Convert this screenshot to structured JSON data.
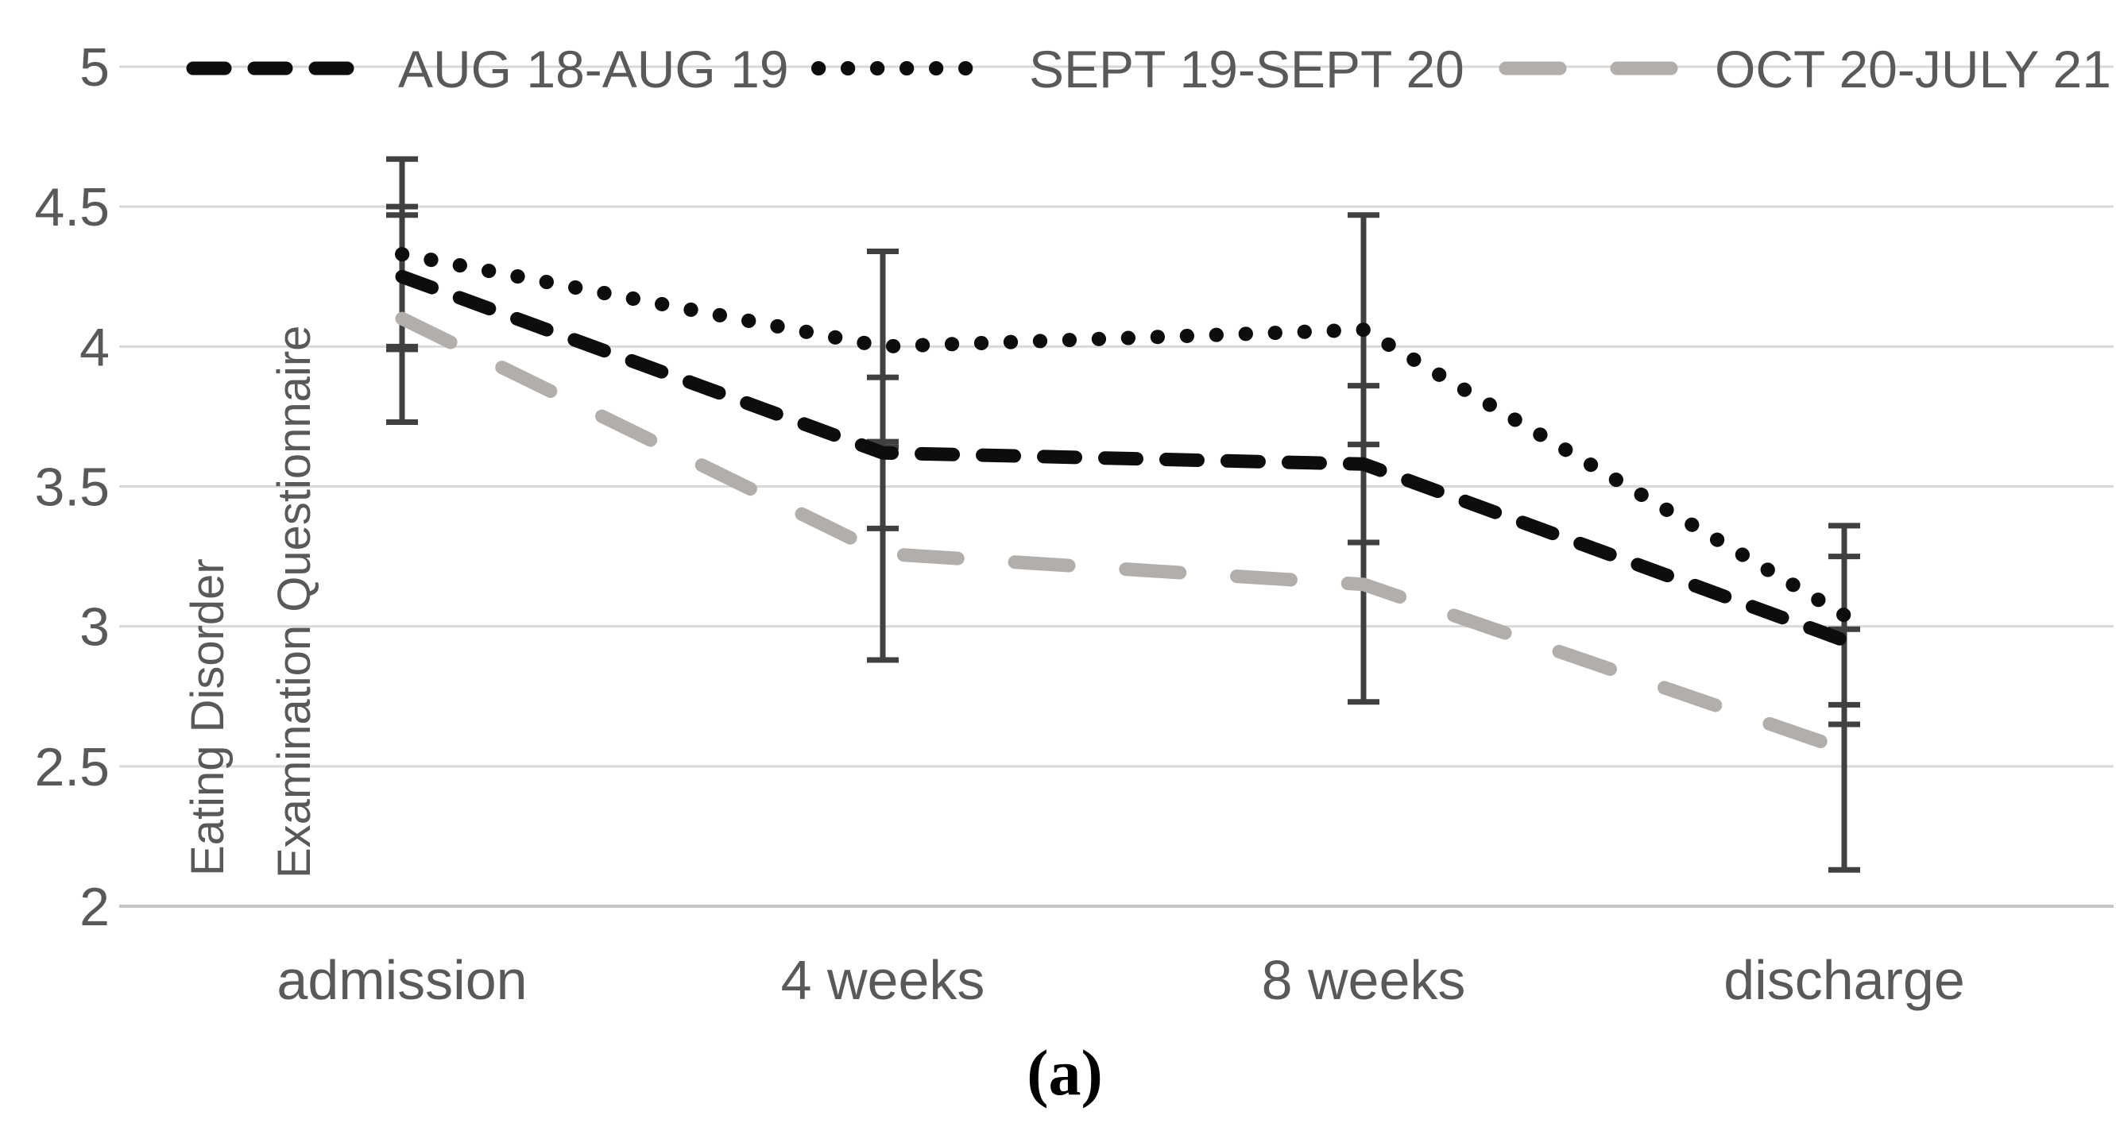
{
  "figure": {
    "caption": "(a)"
  },
  "chart_data": {
    "type": "line",
    "title": "",
    "ylabel_line1": "Eating Disorder",
    "ylabel_line2": "Examination Questionnaire",
    "xlabel": "",
    "categories": [
      "admission",
      "4 weeks",
      "8 weeks",
      "discharge"
    ],
    "ylim": [
      2,
      5
    ],
    "ytick_values": [
      5,
      4.5,
      4,
      3.5,
      3,
      2.5,
      2
    ],
    "ytick_labels": [
      "5",
      "4.5",
      "4",
      "3.5",
      "3",
      "2.5",
      "2"
    ],
    "grid": true,
    "legend_position": "top",
    "series": [
      {
        "name": "AUG 18-AUG 19",
        "style": "dashed",
        "color": "#0d0d0d",
        "values": [
          4.25,
          3.62,
          3.58,
          2.95
        ],
        "err_lo": [
          4.0,
          3.35,
          3.3,
          2.65
        ],
        "err_hi": [
          4.5,
          3.89,
          3.86,
          3.25
        ]
      },
      {
        "name": "SEPT 19-SEPT 20",
        "style": "dotted",
        "color": "#0d0d0d",
        "values": [
          4.33,
          4.0,
          4.06,
          3.04
        ],
        "err_lo": [
          3.99,
          3.66,
          3.65,
          2.72
        ],
        "err_hi": [
          4.67,
          4.34,
          4.47,
          3.36
        ]
      },
      {
        "name": "OCT 20-JULY 21",
        "style": "dashed-gray",
        "color": "#b1aeab",
        "values": [
          4.1,
          3.26,
          3.15,
          2.56
        ],
        "err_lo": [
          3.73,
          2.88,
          2.73,
          2.13
        ],
        "err_hi": [
          4.47,
          3.64,
          3.57,
          2.99
        ]
      }
    ],
    "error_bar_color": "#404040",
    "gridline_color": "#d9d9d9",
    "axis_line_color": "#c6c6c6",
    "text_color": "#595959"
  }
}
